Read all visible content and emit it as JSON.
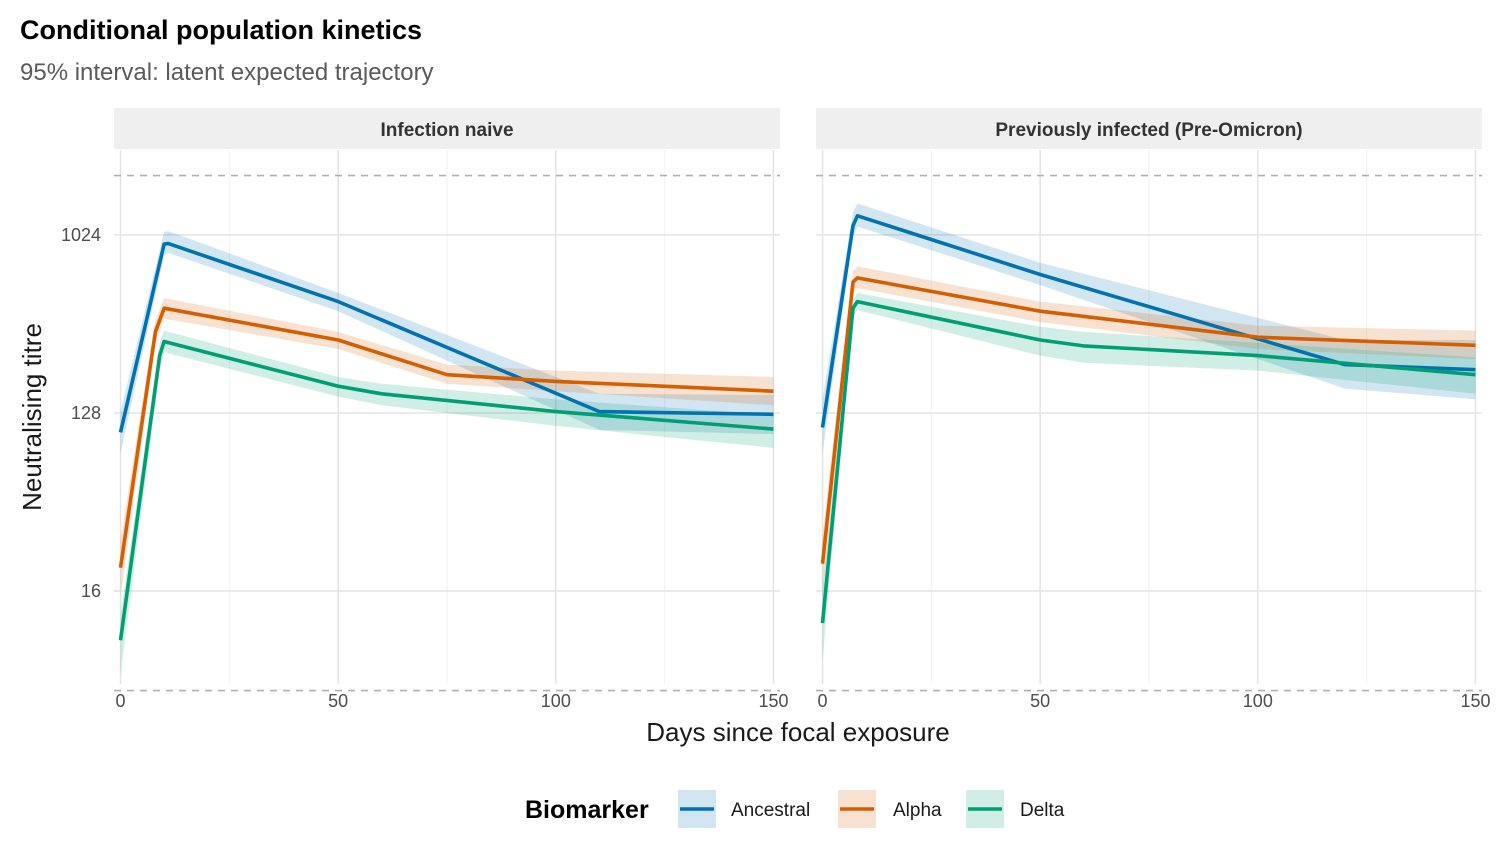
{
  "chart_data": {
    "type": "line",
    "title": "Conditional population kinetics",
    "subtitle": "95% interval: latent expected trajectory",
    "xlabel": "Days since focal exposure",
    "ylabel": "Neutralising titre",
    "x_ticks": [
      0,
      50,
      100,
      150
    ],
    "y_ticks": [
      16,
      128,
      1024
    ],
    "y_scale": "log2",
    "xlim": [
      -1.5,
      151.5
    ],
    "ylim": [
      5.4,
      2760
    ],
    "grid": true,
    "reference_lines": [
      5,
      2048
    ],
    "legend_position": "bottom",
    "legend_title": "Biomarker",
    "series_names": [
      "Ancestral",
      "Alpha",
      "Delta"
    ],
    "colors": {
      "Ancestral": "#0072B2",
      "Alpha": "#D55E00",
      "Delta": "#009E73"
    },
    "panels": [
      {
        "title": "Infection naive",
        "series": [
          {
            "name": "Ancestral",
            "x": [
              0,
              10,
              11,
              50,
              110,
              150
            ],
            "y": [
              102,
              920,
              925,
              470,
              130,
              126
            ],
            "lower": [
              80,
              800,
              830,
              420,
              105,
              100
            ],
            "upper": [
              130,
              1060,
              1070,
              520,
              160,
              158
            ]
          },
          {
            "name": "Alpha",
            "x": [
              0,
              8,
              10,
              50,
              75,
              100,
              150
            ],
            "y": [
              21,
              330,
              435,
              300,
              200,
              185,
              165
            ],
            "lower": [
              15,
              290,
              385,
              270,
              180,
              165,
              140
            ],
            "upper": [
              29,
              380,
              490,
              330,
              225,
              210,
              195
            ]
          },
          {
            "name": "Delta",
            "x": [
              0,
              9,
              10,
              50,
              60,
              100,
              150
            ],
            "y": [
              9,
              250,
              295,
              175,
              160,
              130,
              106
            ],
            "lower": [
              6,
              210,
              260,
              155,
              140,
              110,
              85
            ],
            "upper": [
              12,
              290,
              335,
              195,
              180,
              150,
              125
            ]
          }
        ]
      },
      {
        "title": "Previously infected (Pre-Omicron)",
        "series": [
          {
            "name": "Ancestral",
            "x": [
              0,
              7,
              8,
              50,
              120,
              150
            ],
            "y": [
              108,
              1140,
              1280,
              645,
              225,
              212
            ],
            "lower": [
              80,
              1000,
              1130,
              570,
              170,
              150
            ],
            "upper": [
              150,
              1330,
              1480,
              740,
              300,
              300
            ]
          },
          {
            "name": "Alpha",
            "x": [
              0,
              7,
              8,
              50,
              100,
              150
            ],
            "y": [
              22,
              590,
              620,
              420,
              310,
              282
            ],
            "lower": [
              15,
              520,
              550,
              370,
              270,
              240
            ],
            "upper": [
              31,
              670,
              710,
              470,
              355,
              335
            ]
          },
          {
            "name": "Delta",
            "x": [
              0,
              7,
              8,
              50,
              60,
              100,
              150
            ],
            "y": [
              11,
              435,
              470,
              300,
              280,
              250,
              200
            ],
            "lower": [
              7,
              390,
              425,
              250,
              230,
              210,
              160
            ],
            "upper": [
              16,
              480,
              520,
              350,
              330,
              290,
              245
            ]
          }
        ]
      }
    ]
  }
}
